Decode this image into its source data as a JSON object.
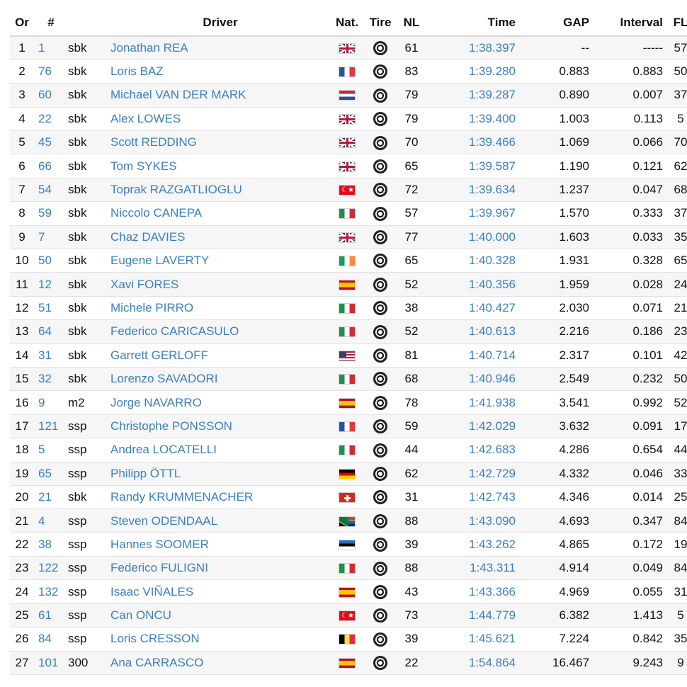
{
  "headers": {
    "or": "Or",
    "num": "#",
    "driver": "Driver",
    "nat": "Nat.",
    "tire": "Tire",
    "nl": "NL",
    "time": "Time",
    "gap": "GAP",
    "interval": "Interval",
    "fl": "FL"
  },
  "rows": [
    {
      "or": "1",
      "num": "1",
      "cls": "sbk",
      "driver": "Jonathan REA",
      "flag": "gb",
      "nl": "61",
      "time": "1:38.397",
      "gap": "--",
      "interval": "-----",
      "fl": "57"
    },
    {
      "or": "2",
      "num": "76",
      "cls": "sbk",
      "driver": "Loris BAZ",
      "flag": "fr",
      "nl": "83",
      "time": "1:39.280",
      "gap": "0.883",
      "interval": "0.883",
      "fl": "50"
    },
    {
      "or": "3",
      "num": "60",
      "cls": "sbk",
      "driver": "Michael VAN DER MARK",
      "flag": "nl",
      "nl": "79",
      "time": "1:39.287",
      "gap": "0.890",
      "interval": "0.007",
      "fl": "37"
    },
    {
      "or": "4",
      "num": "22",
      "cls": "sbk",
      "driver": "Alex LOWES",
      "flag": "gb",
      "nl": "79",
      "time": "1:39.400",
      "gap": "1.003",
      "interval": "0.113",
      "fl": "5"
    },
    {
      "or": "5",
      "num": "45",
      "cls": "sbk",
      "driver": "Scott REDDING",
      "flag": "gb",
      "nl": "70",
      "time": "1:39.466",
      "gap": "1.069",
      "interval": "0.066",
      "fl": "70"
    },
    {
      "or": "6",
      "num": "66",
      "cls": "sbk",
      "driver": "Tom SYKES",
      "flag": "gb",
      "nl": "65",
      "time": "1:39.587",
      "gap": "1.190",
      "interval": "0.121",
      "fl": "62"
    },
    {
      "or": "7",
      "num": "54",
      "cls": "sbk",
      "driver": "Toprak RAZGATLIOGLU",
      "flag": "tr",
      "nl": "72",
      "time": "1:39.634",
      "gap": "1.237",
      "interval": "0.047",
      "fl": "68"
    },
    {
      "or": "8",
      "num": "59",
      "cls": "sbk",
      "driver": "Niccolo CANEPA",
      "flag": "it",
      "nl": "57",
      "time": "1:39.967",
      "gap": "1.570",
      "interval": "0.333",
      "fl": "37"
    },
    {
      "or": "9",
      "num": "7",
      "cls": "sbk",
      "driver": "Chaz DAVIES",
      "flag": "gb",
      "nl": "77",
      "time": "1:40.000",
      "gap": "1.603",
      "interval": "0.033",
      "fl": "35"
    },
    {
      "or": "10",
      "num": "50",
      "cls": "sbk",
      "driver": "Eugene LAVERTY",
      "flag": "ie",
      "nl": "65",
      "time": "1:40.328",
      "gap": "1.931",
      "interval": "0.328",
      "fl": "65"
    },
    {
      "or": "11",
      "num": "12",
      "cls": "sbk",
      "driver": "Xavi FORES",
      "flag": "es",
      "nl": "52",
      "time": "1:40.356",
      "gap": "1.959",
      "interval": "0.028",
      "fl": "24"
    },
    {
      "or": "12",
      "num": "51",
      "cls": "sbk",
      "driver": "Michele PIRRO",
      "flag": "it",
      "nl": "38",
      "time": "1:40.427",
      "gap": "2.030",
      "interval": "0.071",
      "fl": "21"
    },
    {
      "or": "13",
      "num": "64",
      "cls": "sbk",
      "driver": "Federico CARICASULO",
      "flag": "it",
      "nl": "52",
      "time": "1:40.613",
      "gap": "2.216",
      "interval": "0.186",
      "fl": "23"
    },
    {
      "or": "14",
      "num": "31",
      "cls": "sbk",
      "driver": "Garrett GERLOFF",
      "flag": "us",
      "nl": "81",
      "time": "1:40.714",
      "gap": "2.317",
      "interval": "0.101",
      "fl": "42"
    },
    {
      "or": "15",
      "num": "32",
      "cls": "sbk",
      "driver": "Lorenzo SAVADORI",
      "flag": "it",
      "nl": "68",
      "time": "1:40.946",
      "gap": "2.549",
      "interval": "0.232",
      "fl": "50"
    },
    {
      "or": "16",
      "num": "9",
      "cls": "m2",
      "driver": "Jorge NAVARRO",
      "flag": "es",
      "nl": "78",
      "time": "1:41.938",
      "gap": "3.541",
      "interval": "0.992",
      "fl": "52"
    },
    {
      "or": "17",
      "num": "121",
      "cls": "ssp",
      "driver": "Christophe PONSSON",
      "flag": "fr",
      "nl": "59",
      "time": "1:42.029",
      "gap": "3.632",
      "interval": "0.091",
      "fl": "17"
    },
    {
      "or": "18",
      "num": "5",
      "cls": "ssp",
      "driver": "Andrea LOCATELLI",
      "flag": "it",
      "nl": "44",
      "time": "1:42.683",
      "gap": "4.286",
      "interval": "0.654",
      "fl": "44"
    },
    {
      "or": "19",
      "num": "65",
      "cls": "ssp",
      "driver": "Philipp ÖTTL",
      "flag": "de",
      "nl": "62",
      "time": "1:42.729",
      "gap": "4.332",
      "interval": "0.046",
      "fl": "33"
    },
    {
      "or": "20",
      "num": "21",
      "cls": "sbk",
      "driver": "Randy KRUMMENACHER",
      "flag": "ch",
      "nl": "31",
      "time": "1:42.743",
      "gap": "4.346",
      "interval": "0.014",
      "fl": "25"
    },
    {
      "or": "21",
      "num": "4",
      "cls": "ssp",
      "driver": "Steven ODENDAAL",
      "flag": "za",
      "nl": "88",
      "time": "1:43.090",
      "gap": "4.693",
      "interval": "0.347",
      "fl": "84"
    },
    {
      "or": "22",
      "num": "38",
      "cls": "ssp",
      "driver": "Hannes SOOMER",
      "flag": "ee",
      "nl": "39",
      "time": "1:43.262",
      "gap": "4.865",
      "interval": "0.172",
      "fl": "19"
    },
    {
      "or": "23",
      "num": "122",
      "cls": "ssp",
      "driver": "Federico FULIGNI",
      "flag": "it",
      "nl": "88",
      "time": "1:43.311",
      "gap": "4.914",
      "interval": "0.049",
      "fl": "84"
    },
    {
      "or": "24",
      "num": "132",
      "cls": "ssp",
      "driver": "Isaac VIÑALES",
      "flag": "es",
      "nl": "43",
      "time": "1:43.366",
      "gap": "4.969",
      "interval": "0.055",
      "fl": "31"
    },
    {
      "or": "25",
      "num": "61",
      "cls": "ssp",
      "driver": "Can ONCU",
      "flag": "tr",
      "nl": "73",
      "time": "1:44.779",
      "gap": "6.382",
      "interval": "1.413",
      "fl": "5"
    },
    {
      "or": "26",
      "num": "84",
      "cls": "ssp",
      "driver": "Loris CRESSON",
      "flag": "be",
      "nl": "39",
      "time": "1:45.621",
      "gap": "7.224",
      "interval": "0.842",
      "fl": "35"
    },
    {
      "or": "27",
      "num": "101",
      "cls": "300",
      "driver": "Ana CARRASCO",
      "flag": "es",
      "nl": "22",
      "time": "1:54.864",
      "gap": "16.467",
      "interval": "9.243",
      "fl": "9"
    }
  ],
  "colors": {
    "link": "#3a7fc4",
    "row_alt": "#f6f6f6",
    "border": "#e2e2e2"
  }
}
